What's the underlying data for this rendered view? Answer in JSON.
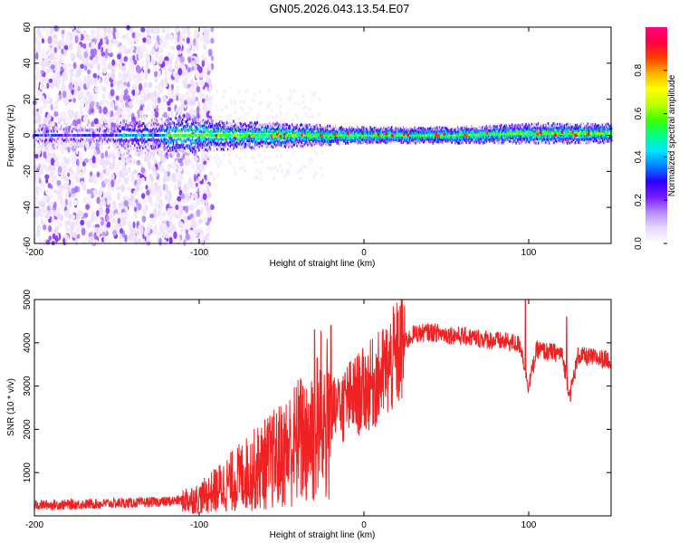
{
  "figure": {
    "title": "GN05.2026.043.13.54.E07"
  },
  "chart_data": [
    {
      "type": "heatmap",
      "title": "",
      "xlabel": "Height of straight line (km)",
      "ylabel": "Frequency (Hz)",
      "xlim": [
        -200,
        150
      ],
      "ylim": [
        -60,
        60
      ],
      "x_ticks": [
        -200,
        -100,
        0,
        100
      ],
      "y_ticks": [
        -60,
        -40,
        -20,
        0,
        20,
        40,
        60
      ],
      "colorbar": {
        "label": "Normalized spectral amplitude",
        "range": [
          0,
          1
        ],
        "ticks": [
          0.0,
          0.2,
          0.4,
          0.6,
          0.8
        ],
        "colormap": "hsv-rainbow",
        "colors": [
          "#ffffff",
          "#e9d8ff",
          "#b58cff",
          "#7a1cff",
          "#2b00ff",
          "#0080ff",
          "#00e5ff",
          "#00ff80",
          "#40ff00",
          "#bfff00",
          "#ffff00",
          "#ffb000",
          "#ff4000",
          "#ff0040",
          "#ff0080"
        ]
      },
      "description_points": [
        {
          "x": -200,
          "noise": "strong",
          "band_center": 0,
          "band_halfwidth": 60
        },
        {
          "x": -150,
          "noise": "strong",
          "band_center": 0,
          "band_halfwidth": 60
        },
        {
          "x": -100,
          "noise": "weak",
          "band_center": 0,
          "band_halfwidth": 8
        },
        {
          "x": -50,
          "noise": "weak",
          "band_center": 0,
          "band_halfwidth": 6
        },
        {
          "x": 0,
          "noise": "none",
          "band_center": 0,
          "band_halfwidth": 4
        },
        {
          "x": 50,
          "noise": "none",
          "band_center": 0,
          "band_halfwidth": 4
        },
        {
          "x": 100,
          "noise": "none",
          "band_center": 1,
          "band_halfwidth": 5
        },
        {
          "x": 150,
          "noise": "none",
          "band_center": 1,
          "band_halfwidth": 5
        }
      ]
    },
    {
      "type": "line",
      "title": "",
      "xlabel": "Height of straight line (km)",
      "ylabel": "SNR (10 * v/v)",
      "xlim": [
        -200,
        150
      ],
      "ylim": [
        0,
        5000
      ],
      "x_ticks": [
        -200,
        -100,
        0,
        100
      ],
      "y_ticks": [
        1000,
        2000,
        3000,
        4000,
        5000
      ],
      "line_color": "#ee2222",
      "series": [
        {
          "name": "SNR",
          "x": [
            -200,
            -180,
            -160,
            -140,
            -120,
            -100,
            -90,
            -80,
            -70,
            -60,
            -50,
            -40,
            -30,
            -20,
            -10,
            0,
            10,
            20,
            25,
            30,
            40,
            50,
            60,
            70,
            80,
            90,
            95,
            100,
            105,
            110,
            120,
            125,
            130,
            140,
            150
          ],
          "values": [
            250,
            260,
            280,
            300,
            330,
            400,
            600,
            800,
            1000,
            1200,
            1400,
            1700,
            2000,
            2300,
            2650,
            2900,
            3200,
            3700,
            4000,
            4200,
            4250,
            4200,
            4150,
            4100,
            4050,
            4000,
            3950,
            3000,
            3850,
            3800,
            3750,
            2800,
            3700,
            3650,
            3600
          ],
          "spikes": [
            {
              "x": -30,
              "value": 4300
            },
            {
              "x": -20,
              "value": 4400
            },
            {
              "x": 98,
              "value": 5000
            },
            {
              "x": 123,
              "value": 4600
            }
          ]
        }
      ]
    }
  ]
}
